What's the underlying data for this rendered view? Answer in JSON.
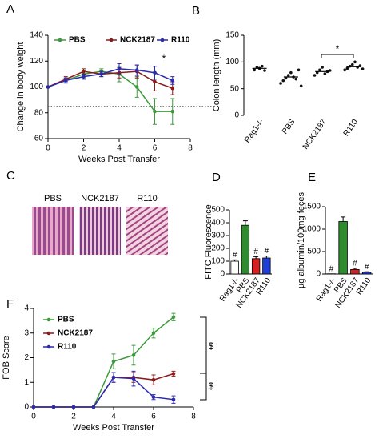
{
  "chart_data": [
    {
      "type": "line",
      "panel": "A",
      "xlabel": "Weeks Post Transfer",
      "ylabel": "Change in body weight",
      "x": [
        0,
        1,
        2,
        3,
        4,
        5,
        6,
        7
      ],
      "xlim": [
        0,
        8
      ],
      "xticks": [
        0,
        2,
        4,
        6,
        8
      ],
      "ylim": [
        60,
        140
      ],
      "yticks": [
        60,
        80,
        100,
        120,
        140
      ],
      "reference_line": 85,
      "legend": "top",
      "series": [
        {
          "name": "PBS",
          "color": "#3c9a3c",
          "values": [
            100,
            105,
            110,
            112,
            110,
            100,
            81,
            81
          ],
          "errors": [
            0,
            2,
            3,
            2,
            6,
            8,
            10,
            10
          ]
        },
        {
          "name": "NCK2187",
          "color": "#8b1a1a",
          "values": [
            100,
            106,
            112,
            110,
            111,
            112,
            104,
            99
          ],
          "errors": [
            0,
            2,
            2,
            2,
            4,
            5,
            7,
            5
          ]
        },
        {
          "name": "R110",
          "color": "#2b2bb0",
          "values": [
            100,
            105,
            108,
            110,
            114,
            113,
            111,
            105
          ],
          "errors": [
            0,
            2,
            2,
            2,
            4,
            4,
            5,
            3
          ]
        }
      ],
      "annotations": [
        {
          "text": "*",
          "color": "#2b2bb0"
        }
      ]
    },
    {
      "type": "dot",
      "panel": "B",
      "ylabel": "Colon length (mm)",
      "categories": [
        "Rag1-/-",
        "PBS",
        "NCK2187",
        "R110"
      ],
      "ylim": [
        0,
        150
      ],
      "yticks": [
        0,
        50,
        100,
        150
      ],
      "values": [
        88,
        72,
        82,
        91
      ],
      "points": [
        [
          85,
          90,
          88,
          92,
          84
        ],
        [
          60,
          65,
          70,
          75,
          80,
          72,
          68,
          85,
          55
        ],
        [
          75,
          80,
          85,
          90,
          78,
          82,
          84
        ],
        [
          85,
          88,
          92,
          95,
          100,
          90,
          93,
          87
        ]
      ],
      "annotations": [
        {
          "text": "*",
          "color": "#000000"
        }
      ]
    },
    {
      "type": "image",
      "panel": "C",
      "categories": [
        "PBS",
        "NCK2187",
        "R110"
      ]
    },
    {
      "type": "bar",
      "panel": "D",
      "ylabel": "FITC Fluorescence",
      "categories": [
        "Rag1-/-",
        "PBS",
        "NCK2187",
        "R110"
      ],
      "ylim": [
        0,
        500
      ],
      "yticks": [
        0,
        100,
        200,
        300,
        400,
        500
      ],
      "values": [
        100,
        380,
        120,
        125
      ],
      "errors": [
        10,
        35,
        15,
        15
      ],
      "colors": [
        "#ffffff",
        "#2e8b2e",
        "#d42020",
        "#1f3fd8"
      ],
      "bar_labels": [
        "#",
        null,
        "#",
        "#"
      ]
    },
    {
      "type": "bar",
      "panel": "E",
      "ylabel": "µg albumin/100mg feces",
      "categories": [
        "Rag1-/-",
        "PBS",
        "NCK2187",
        "R110"
      ],
      "ylim": [
        0,
        1500
      ],
      "yticks": [
        0,
        500,
        1000,
        1500
      ],
      "values": [
        5,
        1170,
        100,
        40
      ],
      "errors": [
        0,
        100,
        25,
        10
      ],
      "colors": [
        "#ffffff",
        "#2e8b2e",
        "#d42020",
        "#1f3fd8"
      ],
      "bar_labels": [
        "#",
        null,
        "#",
        "#"
      ]
    },
    {
      "type": "line",
      "panel": "F",
      "xlabel": "Weeks Post Transfer",
      "ylabel": "FOB Score",
      "x": [
        0,
        1,
        2,
        3,
        4,
        5,
        6,
        7
      ],
      "xlim": [
        0,
        8
      ],
      "xticks": [
        0,
        2,
        4,
        6,
        8
      ],
      "ylim": [
        0,
        4
      ],
      "yticks": [
        0,
        1,
        2,
        3,
        4
      ],
      "legend": "upper left",
      "series": [
        {
          "name": "PBS",
          "color": "#3c9a3c",
          "values": [
            0,
            0,
            0,
            0,
            1.85,
            2.1,
            3.0,
            3.65
          ],
          "errors": [
            0,
            0,
            0,
            0,
            0.3,
            0.4,
            0.2,
            0.15
          ]
        },
        {
          "name": "NCK2187",
          "color": "#8b1a1a",
          "values": [
            0,
            0,
            0,
            0,
            1.2,
            1.2,
            1.1,
            1.35
          ],
          "errors": [
            0,
            0,
            0,
            0,
            0.2,
            0.2,
            0.2,
            0.1
          ]
        },
        {
          "name": "R110",
          "color": "#2b2bb0",
          "values": [
            0,
            0,
            0,
            0,
            1.2,
            1.15,
            0.4,
            0.3
          ],
          "errors": [
            0,
            0,
            0,
            0,
            0.2,
            0.3,
            0.1,
            0.15
          ]
        }
      ],
      "annotations": [
        {
          "text": "$",
          "color": "#c0392b"
        },
        {
          "text": "$",
          "color": "#3333cc"
        }
      ]
    }
  ]
}
